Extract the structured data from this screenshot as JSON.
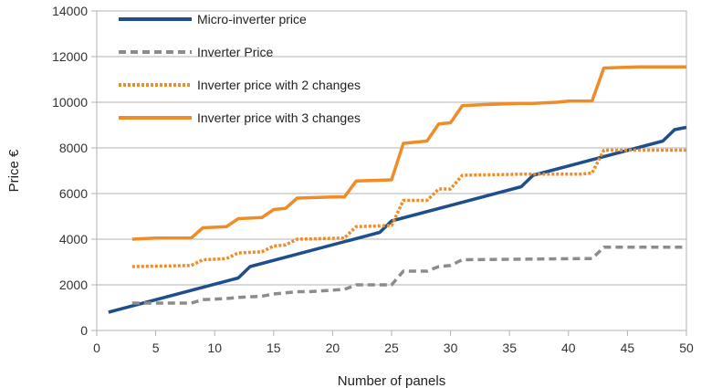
{
  "chart_data": {
    "type": "line",
    "xlabel": "Number of panels",
    "ylabel": "Price €",
    "xlim": [
      0,
      50
    ],
    "ylim": [
      0,
      14000
    ],
    "xticks": [
      0,
      5,
      10,
      15,
      20,
      25,
      30,
      35,
      40,
      45,
      50
    ],
    "yticks": [
      0,
      2000,
      4000,
      6000,
      8000,
      10000,
      12000,
      14000
    ],
    "grid": "horizontal",
    "legend_position": "top-left",
    "series": [
      {
        "name": "Micro-inverter price",
        "color": "#1f4e8c",
        "style": "solid",
        "points": [
          [
            1,
            800
          ],
          [
            12,
            2300
          ],
          [
            13,
            2800
          ],
          [
            24,
            4300
          ],
          [
            25,
            4800
          ],
          [
            36,
            6300
          ],
          [
            37,
            6800
          ],
          [
            48,
            8300
          ],
          [
            49,
            8800
          ],
          [
            50,
            8900
          ]
        ]
      },
      {
        "name": "Inverter Price",
        "color": "#8c8c8c",
        "style": "dashed",
        "points": [
          [
            3,
            1200
          ],
          [
            5,
            1200
          ],
          [
            6,
            1200
          ],
          [
            8,
            1200
          ],
          [
            9,
            1350
          ],
          [
            11,
            1400
          ],
          [
            12,
            1450
          ],
          [
            14,
            1500
          ],
          [
            15,
            1600
          ],
          [
            17,
            1700
          ],
          [
            18,
            1700
          ],
          [
            21,
            1800
          ],
          [
            22,
            2000
          ],
          [
            25,
            2000
          ],
          [
            26,
            2600
          ],
          [
            28,
            2600
          ],
          [
            29,
            2800
          ],
          [
            30,
            2850
          ],
          [
            31,
            3100
          ],
          [
            41,
            3150
          ],
          [
            42,
            3150
          ],
          [
            43,
            3650
          ],
          [
            50,
            3650
          ]
        ]
      },
      {
        "name": "Inverter price with 2 changes",
        "color": "#f08c28",
        "style": "dotted",
        "points": [
          [
            3,
            2800
          ],
          [
            8,
            2850
          ],
          [
            9,
            3100
          ],
          [
            11,
            3150
          ],
          [
            12,
            3400
          ],
          [
            14,
            3450
          ],
          [
            15,
            3700
          ],
          [
            16,
            3750
          ],
          [
            17,
            4000
          ],
          [
            21,
            4050
          ],
          [
            22,
            4550
          ],
          [
            25,
            4600
          ],
          [
            26,
            5700
          ],
          [
            28,
            5700
          ],
          [
            29,
            6200
          ],
          [
            30,
            6200
          ],
          [
            31,
            6800
          ],
          [
            36,
            6850
          ],
          [
            37,
            6850
          ],
          [
            41,
            6850
          ],
          [
            42,
            6900
          ],
          [
            43,
            7900
          ],
          [
            50,
            7900
          ]
        ]
      },
      {
        "name": "Inverter price with 3 changes",
        "color": "#f08c28",
        "style": "solid",
        "points": [
          [
            3,
            4000
          ],
          [
            5,
            4050
          ],
          [
            8,
            4050
          ],
          [
            9,
            4500
          ],
          [
            11,
            4550
          ],
          [
            12,
            4900
          ],
          [
            14,
            4950
          ],
          [
            15,
            5300
          ],
          [
            16,
            5350
          ],
          [
            17,
            5800
          ],
          [
            20,
            5850
          ],
          [
            21,
            5850
          ],
          [
            22,
            6550
          ],
          [
            25,
            6600
          ],
          [
            26,
            8200
          ],
          [
            28,
            8300
          ],
          [
            29,
            9050
          ],
          [
            30,
            9100
          ],
          [
            31,
            9850
          ],
          [
            33,
            9900
          ],
          [
            36,
            9950
          ],
          [
            37,
            9950
          ],
          [
            39,
            10000
          ],
          [
            40,
            10050
          ],
          [
            42,
            10050
          ],
          [
            43,
            11500
          ],
          [
            46,
            11550
          ],
          [
            47,
            11550
          ],
          [
            50,
            11550
          ]
        ]
      }
    ]
  }
}
